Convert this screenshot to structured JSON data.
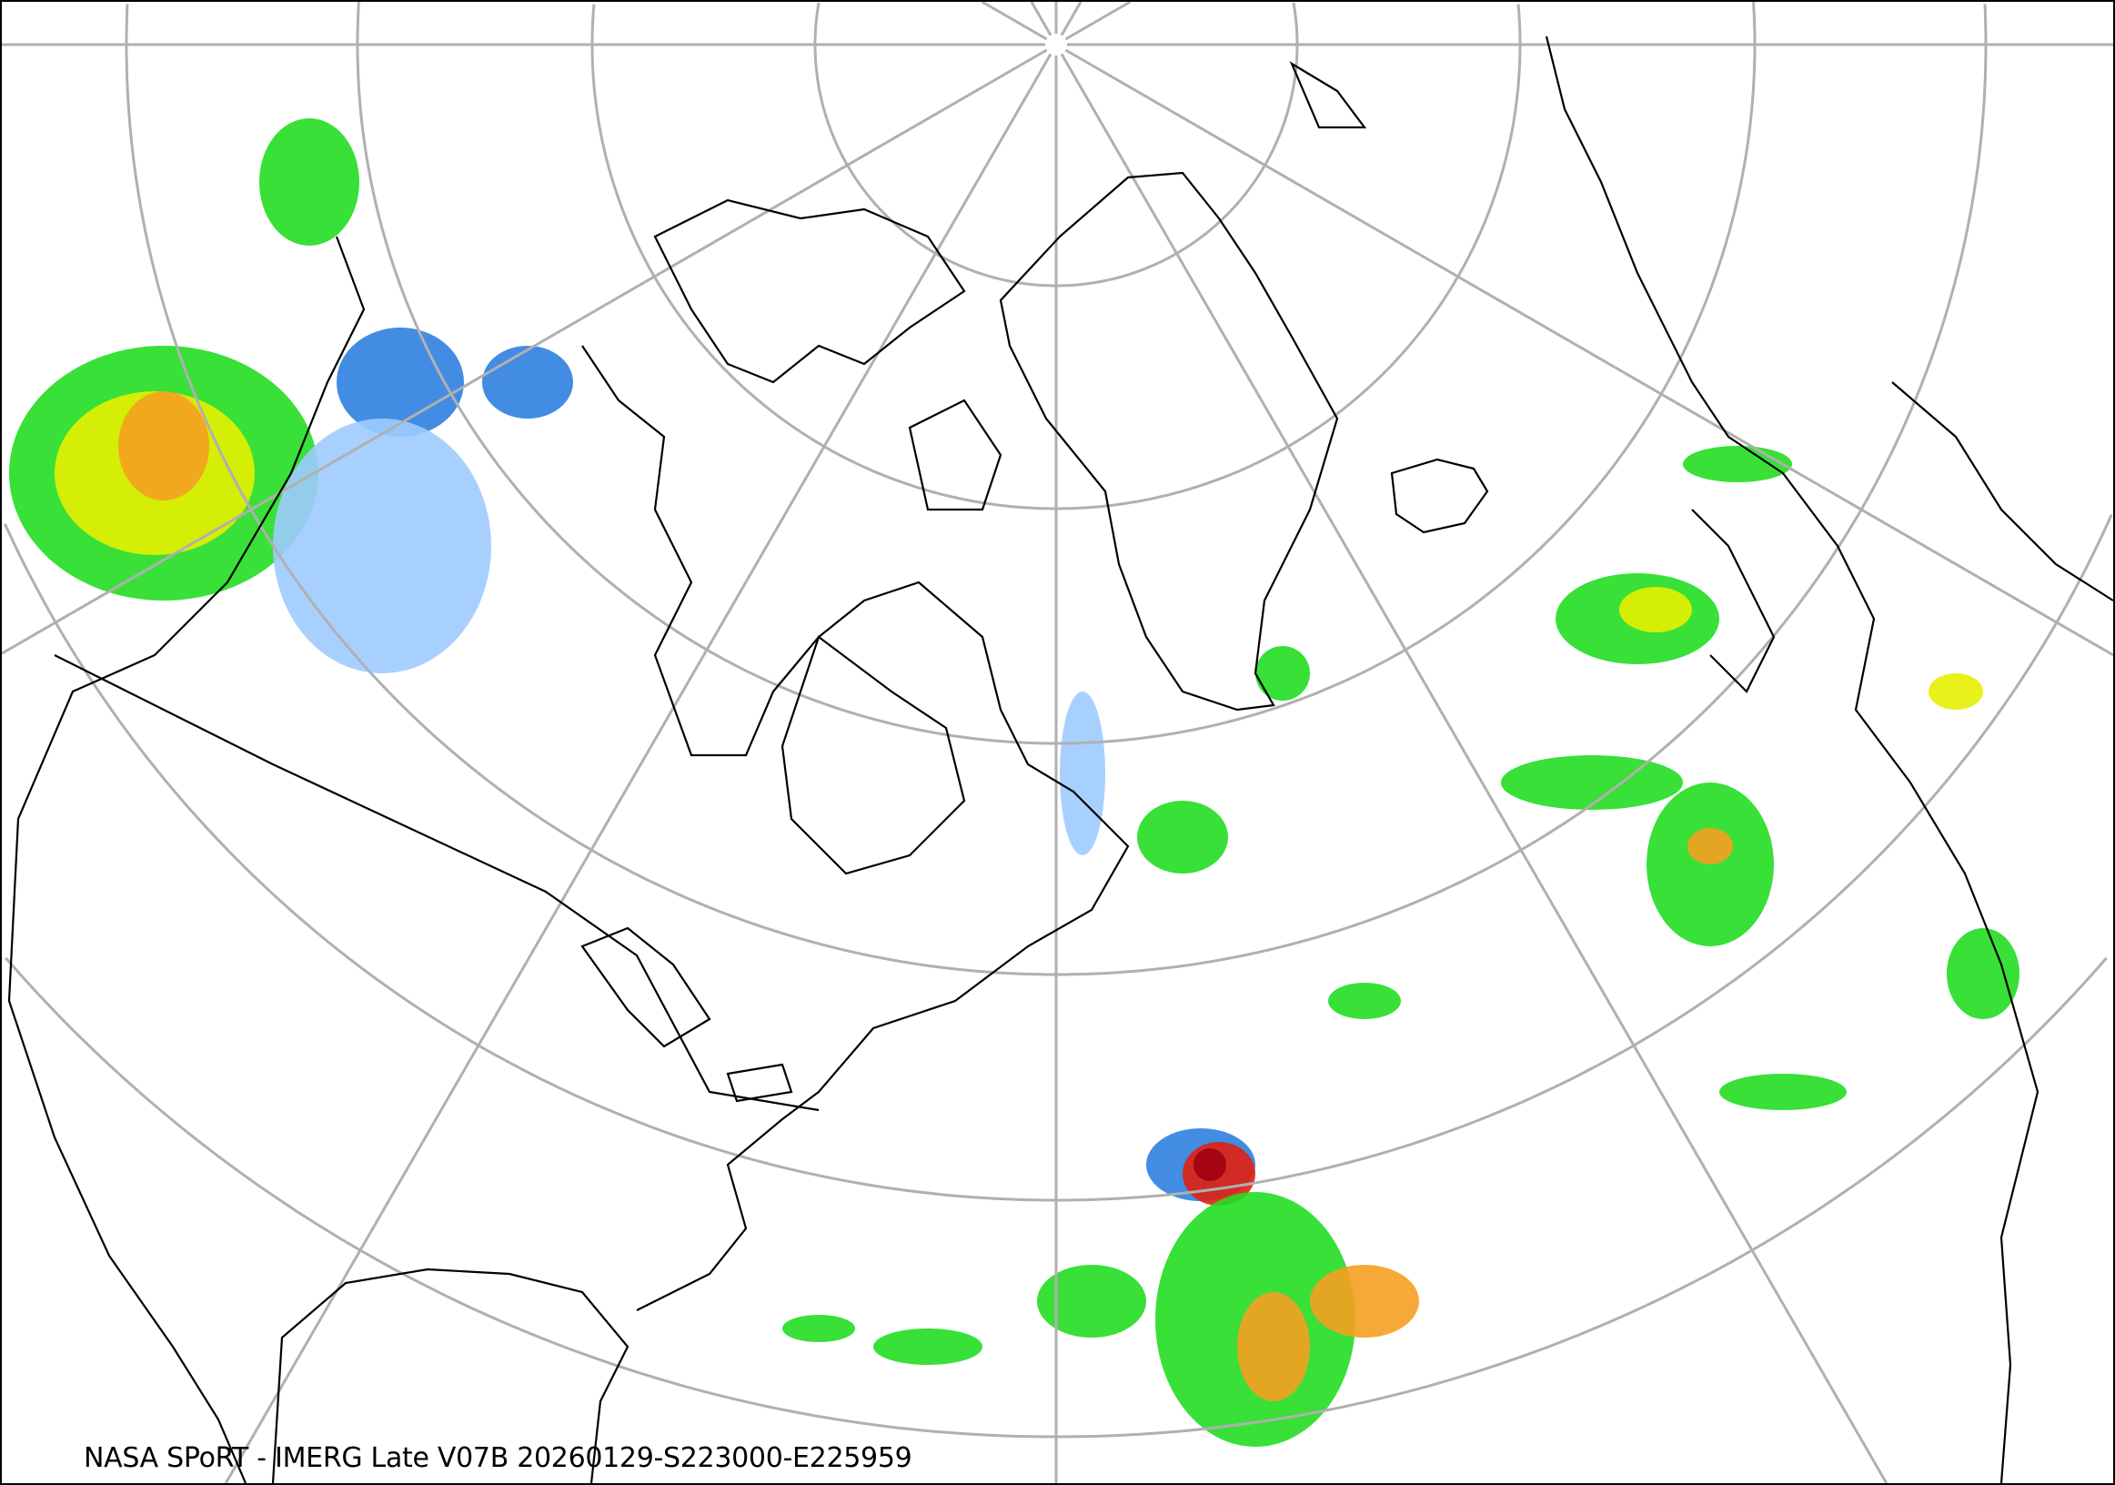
{
  "caption": "NASA SPoRT - IMERG Late V07B 20260129-S223000-E225959",
  "colors": {
    "graticule": "#b0b0b0",
    "coastline": "#000000",
    "precip_light_blue": "#9ecbff",
    "precip_blue": "#2f7fe0",
    "precip_dark_green": "#0a7a1a",
    "precip_green": "#22dd22",
    "precip_yellow": "#e6f000",
    "precip_orange": "#f5a020",
    "precip_red": "#e02010",
    "precip_dark_red": "#a00010",
    "precip_pink": "#ff66cc"
  }
}
